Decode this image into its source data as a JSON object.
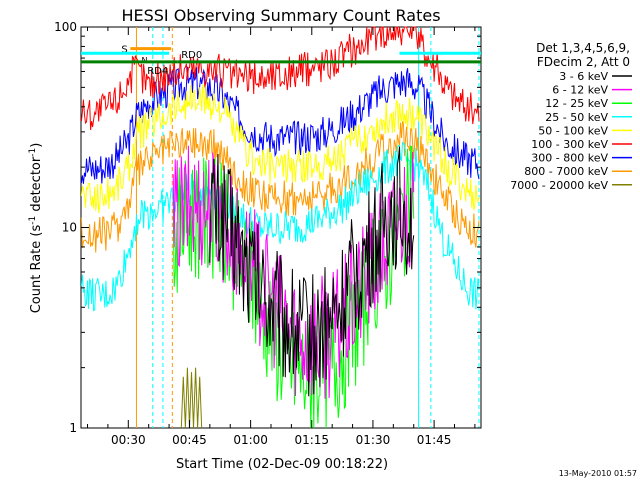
{
  "chart_data": {
    "type": "line",
    "title": "HESSI Observing Summary Count Rates",
    "xlabel": "Start Time (02-Dec-09 00:18:22)",
    "ylabel_main": "Count Rate (s",
    "ylabel_sup": "-1",
    "ylabel_rest": " detector",
    "ylabel_sup2": "-1",
    "ylabel_close": ")",
    "yscale": "log",
    "xlim_minutes": [
      18.4,
      116.5
    ],
    "ylim": [
      1,
      100
    ],
    "x_ticks": [
      {
        "v": 30,
        "label": "00:30"
      },
      {
        "v": 45,
        "label": "00:45"
      },
      {
        "v": 60,
        "label": "01:00"
      },
      {
        "v": 75,
        "label": "01:15"
      },
      {
        "v": 90,
        "label": "01:30"
      },
      {
        "v": 105,
        "label": "01:45"
      }
    ],
    "y_ticks": [
      {
        "v": 1,
        "label": "1"
      },
      {
        "v": 10,
        "label": "10"
      },
      {
        "v": 100,
        "label": "100"
      }
    ],
    "legend_header": [
      "Det 1,3,4,5,6,9,",
      "FDecim 2, Att 0"
    ],
    "legend_position": "right",
    "footer_date": "13-May-2010 01:57",
    "series": [
      {
        "name": "3 - 6 keV",
        "color": "#000000",
        "x": [
          50,
          52,
          54,
          56,
          58,
          60,
          62,
          64,
          66,
          68,
          70,
          72,
          74,
          76,
          78,
          80,
          82,
          84,
          86,
          88,
          90,
          92,
          94,
          96,
          98,
          100
        ],
        "y": [
          13,
          12,
          11,
          9,
          7,
          6,
          5,
          4.5,
          4,
          3.5,
          3.2,
          3,
          3,
          3,
          3.2,
          3.5,
          4,
          5,
          6,
          7,
          8,
          10,
          12,
          13,
          12,
          11
        ]
      },
      {
        "name": "6 - 12 keV",
        "color": "#ff00ff",
        "x": [
          41,
          43,
          45,
          47,
          49,
          51,
          53,
          55,
          57,
          59,
          61,
          63,
          65,
          67,
          69,
          71,
          73,
          75,
          77,
          79,
          81,
          83,
          85,
          87,
          89,
          91,
          93,
          95,
          97,
          99,
          100
        ],
        "y": [
          10.5,
          12,
          12.5,
          13,
          13,
          12.5,
          11,
          9.5,
          8,
          7,
          6,
          5,
          4.2,
          3.8,
          3.4,
          3,
          2.8,
          2.8,
          2.8,
          2.9,
          3.1,
          3.5,
          4,
          5,
          6,
          7,
          8,
          10,
          12,
          13,
          12
        ]
      },
      {
        "name": "12 - 25 keV",
        "color": "#00ff00",
        "x": [
          41,
          43,
          45,
          47,
          49,
          51,
          53,
          55,
          57,
          59,
          61,
          63,
          65,
          67,
          69,
          71,
          73,
          75,
          77,
          79,
          81,
          83,
          85,
          87,
          89,
          91,
          93,
          95,
          97,
          99,
          100
        ],
        "y": [
          9,
          10.5,
          11,
          11.5,
          11.5,
          11,
          10,
          8.5,
          7,
          6,
          5,
          4,
          3.2,
          2.6,
          2.2,
          2,
          1.9,
          1.9,
          1.9,
          2,
          2.2,
          2.6,
          3,
          3.8,
          5,
          6,
          7,
          9,
          11,
          13,
          12
        ]
      },
      {
        "name": "25 - 50 keV",
        "color": "#00ffff",
        "x": [
          18.5,
          21,
          24,
          27,
          30,
          32,
          35,
          38,
          41,
          44,
          47,
          50,
          53,
          56,
          59,
          62,
          65,
          68,
          71,
          74,
          77,
          80,
          83,
          86,
          89,
          92,
          95,
          98,
          101,
          104,
          107,
          110,
          113,
          116
        ],
        "y": [
          5,
          4.6,
          4.5,
          5,
          7.5,
          11,
          12,
          12.5,
          14,
          15,
          15.5,
          15,
          14,
          12,
          11,
          10,
          10,
          10,
          10,
          10.5,
          11,
          12,
          13,
          15,
          17,
          19,
          21,
          22,
          20,
          15,
          9,
          6.5,
          5,
          4.5
        ]
      },
      {
        "name": "50 - 100 keV",
        "color": "#ffff00",
        "x": [
          18.5,
          21,
          24,
          27,
          30,
          32,
          35,
          38,
          41,
          44,
          47,
          50,
          53,
          56,
          59,
          62,
          65,
          68,
          71,
          74,
          77,
          80,
          83,
          86,
          89,
          92,
          95,
          98,
          101,
          104,
          107,
          110,
          113,
          116
        ],
        "y": [
          15,
          14,
          14.5,
          16,
          20,
          28,
          33,
          36,
          40,
          42,
          43,
          42,
          39,
          30,
          24,
          21,
          20,
          20,
          20,
          20,
          21,
          22,
          24,
          27,
          30,
          33,
          36,
          38,
          35,
          28,
          22,
          18,
          15,
          14
        ]
      },
      {
        "name": "100 - 300 keV",
        "color": "#ff0000",
        "x": [
          18.5,
          21,
          24,
          27,
          30,
          32,
          35,
          38,
          41,
          44,
          47,
          50,
          53,
          56,
          59,
          62,
          65,
          68,
          71,
          74,
          77,
          80,
          83,
          86,
          89,
          92,
          95,
          98,
          101,
          104,
          107,
          110,
          113,
          116
        ],
        "y": [
          38,
          37,
          39,
          43,
          55,
          62,
          52,
          57,
          60,
          62,
          63,
          62,
          60,
          57,
          56,
          56,
          57,
          58,
          60,
          62,
          65,
          68,
          73,
          80,
          88,
          95,
          100,
          98,
          90,
          70,
          55,
          45,
          40,
          37
        ]
      },
      {
        "name": "300 - 800 keV",
        "color": "#0000ff",
        "x": [
          18.5,
          21,
          24,
          27,
          30,
          32,
          35,
          38,
          41,
          44,
          47,
          50,
          53,
          56,
          59,
          62,
          65,
          68,
          71,
          74,
          77,
          80,
          83,
          86,
          89,
          92,
          95,
          98,
          101,
          104,
          107,
          110,
          113,
          116
        ],
        "y": [
          20,
          19.5,
          20,
          22,
          27,
          36,
          42,
          46,
          50,
          52,
          52,
          50,
          46,
          38,
          32,
          29,
          28,
          28,
          28,
          28.5,
          29,
          31,
          34,
          38,
          43,
          48,
          52,
          54,
          50,
          38,
          28,
          24,
          22,
          21
        ]
      },
      {
        "name": "800 - 7000 keV",
        "color": "#ff9900",
        "x": [
          18.5,
          21,
          24,
          27,
          30,
          32,
          35,
          38,
          41,
          44,
          47,
          50,
          53,
          56,
          59,
          62,
          65,
          68,
          71,
          74,
          77,
          80,
          83,
          86,
          89,
          92,
          95,
          98,
          101,
          104,
          107,
          110,
          113,
          116
        ],
        "y": [
          9.5,
          9,
          9.3,
          10,
          13,
          19,
          22,
          24,
          26,
          27,
          27,
          26,
          24,
          19,
          16,
          14.5,
          14,
          14,
          14,
          14,
          14.5,
          15.5,
          17,
          19,
          21,
          24,
          26,
          28,
          26,
          20,
          15,
          12,
          10,
          9.5
        ]
      },
      {
        "name": "7000 - 20000 keV",
        "color": "#808000",
        "x": [
          43,
          43.5,
          44,
          44.5,
          45,
          45.5,
          46,
          46.5,
          47,
          47.5,
          48
        ],
        "y": [
          1,
          1.8,
          1,
          2,
          1,
          1.9,
          1,
          2,
          1,
          1.8,
          1
        ]
      }
    ],
    "status_bars": [
      {
        "label": "S",
        "color": "#ff9900",
        "x": [
          30.5,
          40.5
        ],
        "y": 78
      },
      {
        "label": "",
        "color": "#00ffff",
        "x": [
          18.4,
          33
        ],
        "y": 74
      },
      {
        "label": "N",
        "color": "#00ffff",
        "x": [
          33,
          40
        ],
        "y": 74
      },
      {
        "label": "",
        "color": "#00ffff",
        "x": [
          96.5,
          116.5
        ],
        "y": 74
      },
      {
        "label": "RD4",
        "color": "#008000",
        "x": [
          18.4,
          42
        ],
        "y": 67
      },
      {
        "label": "RD0",
        "color": "#008000",
        "x": [
          42,
          116.5
        ],
        "y": 67
      }
    ],
    "vertical_lines": [
      {
        "x": 32,
        "color": "#ff9900",
        "style": "solid"
      },
      {
        "x": 36,
        "color": "#00ffff",
        "style": "dashed"
      },
      {
        "x": 38.5,
        "color": "#00ffff",
        "style": "dashed"
      },
      {
        "x": 40.8,
        "color": "#ff9900",
        "style": "dashed"
      },
      {
        "x": 101.2,
        "color": "#00ffff",
        "style": "solid"
      },
      {
        "x": 104.2,
        "color": "#00ffff",
        "style": "dashed"
      },
      {
        "x": 116,
        "color": "#00ffff",
        "style": "dashed"
      }
    ]
  }
}
